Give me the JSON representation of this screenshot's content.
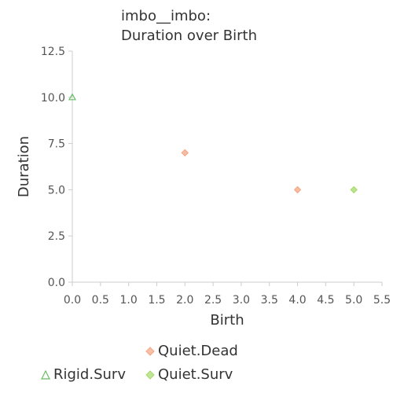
{
  "chart_data": {
    "type": "scatter",
    "title_line1": "imbo__imbo:",
    "title_line2": "Duration over Birth",
    "xlabel": "Birth",
    "ylabel": "Duration",
    "xlim": [
      0,
      5.5
    ],
    "ylim": [
      0,
      12.5
    ],
    "x_ticks": [
      "0.0",
      "0.5",
      "1.0",
      "1.5",
      "2.0",
      "2.5",
      "3.0",
      "3.5",
      "4.0",
      "4.5",
      "5.0",
      "5.5"
    ],
    "y_ticks": [
      "0.0",
      "2.5",
      "5.0",
      "7.5",
      "10.0",
      "12.5"
    ],
    "grid": false,
    "legend_placement": "bottom",
    "series": [
      {
        "name": "Quiet.Dead",
        "marker": "diamond",
        "color": "#f4a582",
        "points": [
          {
            "x": 2.0,
            "y": 7.0
          },
          {
            "x": 4.0,
            "y": 5.0
          }
        ]
      },
      {
        "name": "Rigid.Surv",
        "marker": "triangle",
        "color": "#66bd63",
        "points": [
          {
            "x": 0.0,
            "y": 10.0
          }
        ]
      },
      {
        "name": "Quiet.Surv",
        "marker": "diamond",
        "color": "#a6d96a",
        "points": [
          {
            "x": 5.0,
            "y": 5.0
          }
        ]
      }
    ]
  }
}
